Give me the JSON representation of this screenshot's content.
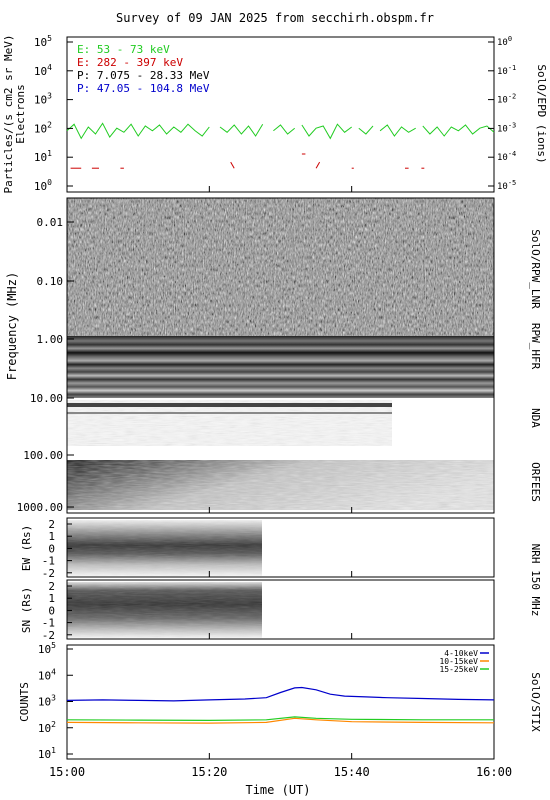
{
  "title": "Survey of 09 JAN 2025 from secchirh.obspm.fr",
  "x_axis": {
    "label": "Time (UT)",
    "ticks": [
      "15:00",
      "15:20",
      "15:40",
      "16:00"
    ]
  },
  "panels": {
    "epd": {
      "ylabel1": "Particles/(s cm2 sr MeV)",
      "ylabel2": "Electrons",
      "right_label": "SolO/EPD (ions)",
      "legend": [
        {
          "text": "E: 53 - 73 keV",
          "color": "#22cc22"
        },
        {
          "text": "E: 282 - 397 keV",
          "color": "#cc0000"
        },
        {
          "text": "P: 7.075 - 28.33 MeV",
          "color": "#000000"
        },
        {
          "text": "P: 47.05 - 104.8 MeV",
          "color": "#0000cc"
        }
      ],
      "left_ticks": [
        "10",
        "10",
        "10",
        "10",
        "10",
        "10"
      ],
      "left_exps": [
        "0",
        "1",
        "2",
        "3",
        "4",
        "5"
      ],
      "right_ticks": [
        "10",
        "10",
        "10",
        "10",
        "10",
        "10",
        "10"
      ],
      "right_exps": [
        "-5",
        "-4",
        "-3",
        "-2",
        "-1",
        "0"
      ]
    },
    "freq": {
      "ylabel": "Frequency (MHz)",
      "ticks": [
        "0.01",
        "0.10",
        "1.00",
        "10.00",
        "100.00",
        "1000.00"
      ],
      "right_labels": {
        "lnr": "SolO/RPW_LNR",
        "hfr": "RPW_HFR",
        "nda": "NDA",
        "orfees": "ORFEES"
      }
    },
    "nrh_ew": {
      "ylabel": "EW (Rs)",
      "ticks": [
        "2",
        "1",
        "0",
        "-1",
        "-2"
      ]
    },
    "nrh_sn": {
      "ylabel": "SN (Rs)",
      "ticks": [
        "2",
        "1",
        "0",
        "-1",
        "-2"
      ]
    },
    "nrh_label": "NRH 150 MHz",
    "stix": {
      "ylabel": "COUNTS",
      "right_label": "SolO/STIX",
      "ticks": [
        "10",
        "10",
        "10",
        "10",
        "10"
      ],
      "tick_exps": [
        "1",
        "2",
        "3",
        "4",
        "5"
      ],
      "legend": [
        {
          "text": "4-10keV",
          "color": "#0000cc"
        },
        {
          "text": "10-15keV",
          "color": "#ff8800"
        },
        {
          "text": "15-25keV",
          "color": "#22cc22"
        }
      ]
    }
  },
  "chart_data": [
    {
      "type": "line",
      "panel": "SolO/EPD",
      "x_unit": "minutes after 15:00 UT",
      "y_scale": "log",
      "ylim": [
        1,
        100000
      ],
      "series": [
        {
          "name": "E: 53 - 73 keV",
          "color": "#22cc22",
          "segments": [
            [
              [
                0,
                90
              ],
              [
                1,
                150
              ],
              [
                2,
                50
              ],
              [
                3,
                120
              ],
              [
                4,
                70
              ],
              [
                5,
                160
              ],
              [
                6,
                55
              ],
              [
                7,
                110
              ],
              [
                8,
                80
              ],
              [
                9,
                150
              ],
              [
                10,
                60
              ],
              [
                11,
                130
              ],
              [
                12,
                90
              ],
              [
                13,
                140
              ],
              [
                14,
                70
              ],
              [
                15,
                120
              ],
              [
                16,
                80
              ],
              [
                17,
                150
              ],
              [
                18,
                90
              ],
              [
                19,
                60
              ],
              [
                20,
                120
              ]
            ],
            [
              [
                21.5,
                120
              ],
              [
                22.5,
                80
              ],
              [
                23.5,
                140
              ],
              [
                24.5,
                70
              ],
              [
                25.5,
                130
              ],
              [
                26.5,
                60
              ],
              [
                27.5,
                150
              ]
            ],
            [
              [
                29,
                90
              ],
              [
                30,
                140
              ],
              [
                31,
                70
              ],
              [
                32,
                110
              ]
            ],
            [
              [
                33,
                140
              ],
              [
                34,
                60
              ],
              [
                35,
                110
              ],
              [
                36,
                130
              ],
              [
                37,
                50
              ],
              [
                38,
                150
              ],
              [
                39,
                80
              ],
              [
                40,
                120
              ]
            ],
            [
              [
                41,
                110
              ],
              [
                42,
                70
              ],
              [
                43,
                130
              ]
            ],
            [
              [
                44,
                90
              ],
              [
                45,
                140
              ],
              [
                46,
                60
              ],
              [
                47,
                120
              ],
              [
                48,
                80
              ],
              [
                49,
                110
              ]
            ],
            [
              [
                50,
                130
              ],
              [
                51,
                70
              ],
              [
                52,
                120
              ],
              [
                53,
                60
              ],
              [
                54,
                120
              ],
              [
                55,
                90
              ],
              [
                56,
                140
              ],
              [
                57,
                70
              ],
              [
                58,
                110
              ],
              [
                59,
                130
              ],
              [
                60,
                80
              ]
            ]
          ]
        },
        {
          "name": "E: 282 - 397 keV",
          "color": "#cc0000",
          "segments": [
            [
              [
                0.5,
                5
              ],
              [
                2,
                5
              ]
            ],
            [
              [
                3.5,
                5
              ],
              [
                4.5,
                5
              ]
            ],
            [
              [
                7.5,
                5
              ],
              [
                8,
                5
              ]
            ],
            [
              [
                23,
                8
              ],
              [
                23.5,
                5
              ]
            ],
            [
              [
                33,
                15
              ],
              [
                33.5,
                15
              ]
            ],
            [
              [
                35,
                5
              ],
              [
                35.5,
                8
              ]
            ],
            [
              [
                40,
                5
              ],
              [
                40.3,
                5
              ]
            ],
            [
              [
                47.5,
                5
              ],
              [
                48,
                5
              ]
            ],
            [
              [
                49.8,
                5
              ],
              [
                50.2,
                5
              ]
            ]
          ]
        }
      ]
    },
    {
      "type": "heatmap",
      "panel": "Dynamic spectrum",
      "sub_panels": [
        "SolO/RPW_LNR",
        "RPW_HFR",
        "NDA",
        "ORFEES"
      ],
      "y_scale": "log",
      "ylim": [
        0.01,
        1000
      ],
      "x_range": [
        "15:00",
        "16:00"
      ]
    },
    {
      "type": "heatmap",
      "panel": "NRH 150 MHz EW",
      "ylim": [
        -2,
        2
      ],
      "x_range": [
        "15:00",
        "15:27"
      ]
    },
    {
      "type": "heatmap",
      "panel": "NRH 150 MHz SN",
      "ylim": [
        -2,
        2
      ],
      "x_range": [
        "15:00",
        "15:27"
      ]
    },
    {
      "type": "line",
      "panel": "SolO/STIX",
      "x_unit": "minutes after 15:00 UT",
      "y_scale": "log",
      "ylim": [
        10,
        100000
      ],
      "series": [
        {
          "name": "4-10keV",
          "color": "#0000cc",
          "points": [
            [
              0,
              1100
            ],
            [
              5,
              1150
            ],
            [
              10,
              1100
            ],
            [
              15,
              1050
            ],
            [
              20,
              1150
            ],
            [
              25,
              1250
            ],
            [
              28,
              1400
            ],
            [
              30,
              2200
            ],
            [
              32,
              3300
            ],
            [
              33,
              3400
            ],
            [
              35,
              2800
            ],
            [
              37,
              1900
            ],
            [
              39,
              1600
            ],
            [
              42,
              1500
            ],
            [
              45,
              1400
            ],
            [
              50,
              1300
            ],
            [
              55,
              1200
            ],
            [
              60,
              1150
            ]
          ]
        },
        {
          "name": "10-15keV",
          "color": "#ff8800",
          "points": [
            [
              0,
              160
            ],
            [
              10,
              155
            ],
            [
              20,
              150
            ],
            [
              28,
              160
            ],
            [
              32,
              230
            ],
            [
              35,
              200
            ],
            [
              40,
              170
            ],
            [
              50,
              160
            ],
            [
              60,
              155
            ]
          ]
        },
        {
          "name": "15-25keV",
          "color": "#22cc22",
          "points": [
            [
              0,
              200
            ],
            [
              10,
              195
            ],
            [
              20,
              190
            ],
            [
              28,
              200
            ],
            [
              32,
              260
            ],
            [
              35,
              230
            ],
            [
              40,
              210
            ],
            [
              50,
              200
            ],
            [
              60,
              200
            ]
          ]
        }
      ]
    }
  ]
}
